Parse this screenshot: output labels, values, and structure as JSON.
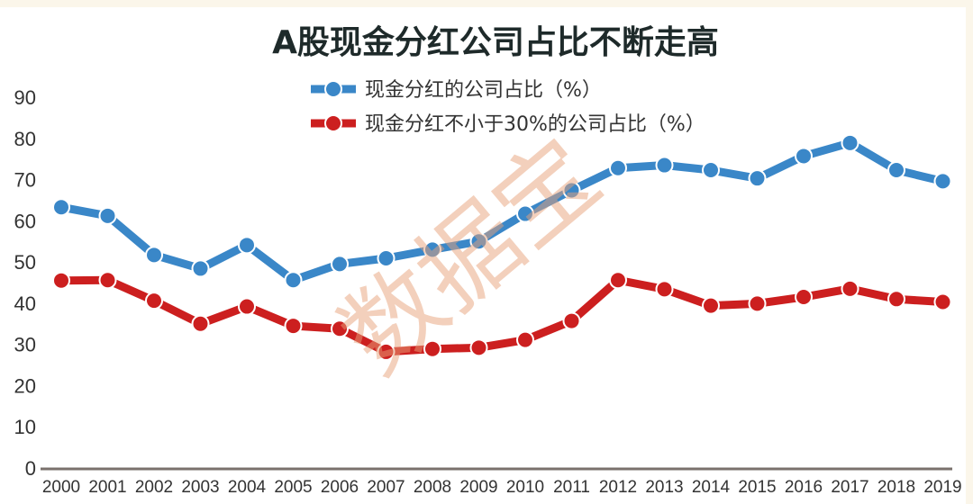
{
  "chart_data": {
    "type": "line",
    "title": "A股现金分红公司占比不断走高",
    "xlabel": "",
    "ylabel": "",
    "ylim": [
      0,
      90
    ],
    "yticks": [
      0,
      10,
      20,
      30,
      40,
      50,
      60,
      70,
      80,
      90
    ],
    "grid": false,
    "legend_position": "top-center",
    "watermark": "数据宝",
    "categories": [
      "2000",
      "2001",
      "2002",
      "2003",
      "2004",
      "2005",
      "2006",
      "2007",
      "2008",
      "2009",
      "2010",
      "2011",
      "2012",
      "2013",
      "2014",
      "2015",
      "2016",
      "2017",
      "2018",
      "2019"
    ],
    "series": [
      {
        "name": "现金分红的公司占比（%）",
        "color": "#3a87c8",
        "values": [
          63.3,
          61.2,
          51.7,
          48.4,
          54.1,
          45.6,
          49.5,
          50.9,
          53.0,
          55.0,
          61.7,
          67.4,
          72.8,
          73.5,
          72.3,
          70.3,
          75.7,
          78.9,
          72.3,
          69.6
        ]
      },
      {
        "name": "现金分红不小于30%的公司占比（%）",
        "color": "#cc1f1f",
        "values": [
          45.5,
          45.6,
          40.6,
          35.0,
          39.2,
          34.5,
          33.8,
          28.2,
          28.9,
          29.2,
          31.1,
          35.7,
          45.6,
          43.4,
          39.4,
          39.9,
          41.5,
          43.5,
          41.0,
          40.3
        ]
      }
    ]
  }
}
